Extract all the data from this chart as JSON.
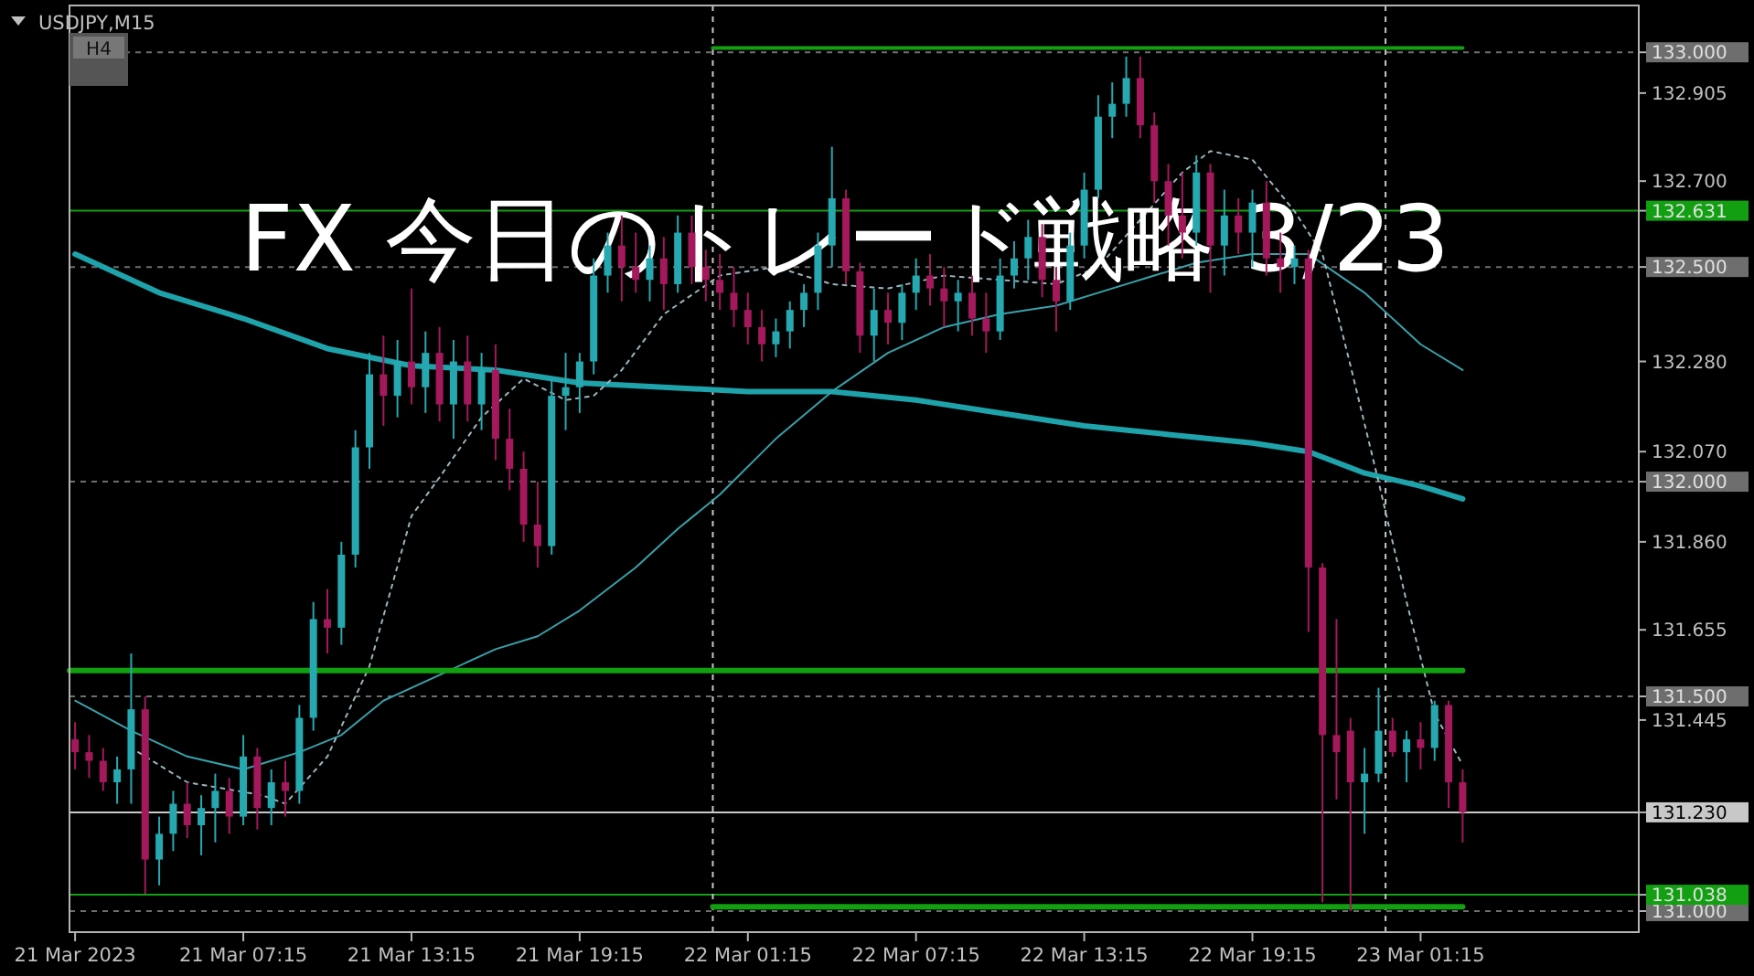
{
  "chart_data": {
    "type": "candlestick",
    "title": "FX 今日のトレード戦略 3/23",
    "annotations": [
      "USDJPY,M15",
      "H4"
    ],
    "xlim": [
      "2023-03-21T01:03",
      "2023-03-23T09:02"
    ],
    "ylim": [
      130.951,
      133.109
    ],
    "xticks": [
      {
        "value": "2023-03-21T01:15",
        "label": "21 Mar 2023"
      },
      {
        "value": "2023-03-21T07:15",
        "label": "21 Mar 07:15"
      },
      {
        "value": "2023-03-21T13:15",
        "label": "21 Mar 13:15"
      },
      {
        "value": "2023-03-21T19:15",
        "label": "21 Mar 19:15"
      },
      {
        "value": "2023-03-22T01:15",
        "label": "22 Mar 01:15"
      },
      {
        "value": "2023-03-22T07:15",
        "label": "22 Mar 07:15"
      },
      {
        "value": "2023-03-22T13:15",
        "label": "22 Mar 13:15"
      },
      {
        "value": "2023-03-22T19:15",
        "label": "22 Mar 19:15"
      },
      {
        "value": "2023-03-23T01:15",
        "label": "23 Mar 01:15"
      }
    ],
    "yticks": [
      {
        "value": 133,
        "label": "133.000"
      },
      132.905,
      {
        "value": 132.7,
        "label": "132.700"
      },
      132.631,
      {
        "value": 132.5,
        "label": "132.500"
      },
      {
        "value": 132.28,
        "label": "132.280"
      },
      {
        "value": 132.07,
        "label": "132.070"
      },
      {
        "value": 132,
        "label": "132.000"
      },
      {
        "value": 131.86,
        "label": "131.860"
      },
      131.655,
      {
        "value": 131.5,
        "label": "131.500"
      },
      131.445,
      {
        "value": 131.23,
        "label": "131.230"
      },
      131.038,
      {
        "value": 131,
        "label": "131.000"
      }
    ],
    "ref_lines": [
      {
        "axis": "y",
        "value": 133,
        "color": "#6e6e6e",
        "line_style": "dashed"
      },
      {
        "axis": "y",
        "value": 132.5,
        "color": "#6e6e6e",
        "line_style": "dashed"
      },
      {
        "axis": "y",
        "value": 132,
        "color": "#6e6e6e",
        "line_style": "dashed"
      },
      {
        "axis": "y",
        "value": 131.5,
        "color": "#6e6e6e",
        "line_style": "dashed"
      },
      {
        "axis": "y",
        "value": 131,
        "color": "#6e6e6e",
        "line_style": "dashed"
      },
      {
        "axis": "y",
        "value": 132.631,
        "color": "#12a012",
        "line_style": "solid"
      },
      {
        "axis": "y",
        "value": 131.038,
        "color": "#12a012",
        "line_style": "solid"
      },
      {
        "axis": "y",
        "value": 131.23,
        "color": "#c8c8c8",
        "line_style": "solid"
      },
      {
        "axis": "x",
        "value": "2023-03-22T00:00",
        "color": "#c8c8c8",
        "line_style": "dashed"
      },
      {
        "axis": "x",
        "value": "2023-03-23T00:00",
        "color": "#c8c8c8",
        "line_style": "dashed"
      }
    ],
    "x": [
      "2023-03-21T01:15",
      "2023-03-21T01:45",
      "2023-03-21T02:15",
      "2023-03-21T02:45",
      "2023-03-21T03:15",
      "2023-03-21T03:45",
      "2023-03-21T04:15",
      "2023-03-21T04:45",
      "2023-03-21T05:15",
      "2023-03-21T05:45",
      "2023-03-21T06:15",
      "2023-03-21T06:45",
      "2023-03-21T07:15",
      "2023-03-21T07:45",
      "2023-03-21T08:15",
      "2023-03-21T08:45",
      "2023-03-21T09:15",
      "2023-03-21T09:45",
      "2023-03-21T10:15",
      "2023-03-21T10:45",
      "2023-03-21T11:15",
      "2023-03-21T11:45",
      "2023-03-21T12:15",
      "2023-03-21T12:45",
      "2023-03-21T13:15",
      "2023-03-21T13:45",
      "2023-03-21T14:15",
      "2023-03-21T14:45",
      "2023-03-21T15:15",
      "2023-03-21T15:45",
      "2023-03-21T16:15",
      "2023-03-21T16:45",
      "2023-03-21T17:15",
      "2023-03-21T17:45",
      "2023-03-21T18:15",
      "2023-03-21T18:45",
      "2023-03-21T19:15",
      "2023-03-21T19:45",
      "2023-03-21T20:15",
      "2023-03-21T20:45",
      "2023-03-21T21:15",
      "2023-03-21T21:45",
      "2023-03-21T22:15",
      "2023-03-21T22:45",
      "2023-03-21T23:15",
      "2023-03-21T23:45",
      "2023-03-22T00:15",
      "2023-03-22T00:45",
      "2023-03-22T01:15",
      "2023-03-22T01:45",
      "2023-03-22T02:15",
      "2023-03-22T02:45",
      "2023-03-22T03:15",
      "2023-03-22T03:45",
      "2023-03-22T04:15",
      "2023-03-22T04:45",
      "2023-03-22T05:15",
      "2023-03-22T05:45",
      "2023-03-22T06:15",
      "2023-03-22T06:45",
      "2023-03-22T07:15",
      "2023-03-22T07:45",
      "2023-03-22T08:15",
      "2023-03-22T08:45",
      "2023-03-22T09:15",
      "2023-03-22T09:45",
      "2023-03-22T10:15",
      "2023-03-22T10:45",
      "2023-03-22T11:15",
      "2023-03-22T11:45",
      "2023-03-22T12:15",
      "2023-03-22T12:45",
      "2023-03-22T13:15",
      "2023-03-22T13:45",
      "2023-03-22T14:15",
      "2023-03-22T14:45",
      "2023-03-22T15:15",
      "2023-03-22T15:45",
      "2023-03-22T16:15",
      "2023-03-22T16:45",
      "2023-03-22T17:15",
      "2023-03-22T17:45",
      "2023-03-22T18:15",
      "2023-03-22T18:45",
      "2023-03-22T19:15",
      "2023-03-22T19:45",
      "2023-03-22T20:15",
      "2023-03-22T20:45",
      "2023-03-22T21:15",
      "2023-03-22T21:45",
      "2023-03-22T22:15",
      "2023-03-22T22:45",
      "2023-03-22T23:15",
      "2023-03-22T23:45",
      "2023-03-23T00:15",
      "2023-03-23T00:45",
      "2023-03-23T01:15",
      "2023-03-23T01:45",
      "2023-03-23T02:15",
      "2023-03-23T02:45"
    ],
    "ohlc": [
      [
        131.4,
        131.44,
        131.33,
        131.37
      ],
      [
        131.37,
        131.41,
        131.31,
        131.35
      ],
      [
        131.35,
        131.38,
        131.28,
        131.3
      ],
      [
        131.3,
        131.36,
        131.25,
        131.33
      ],
      [
        131.33,
        131.6,
        131.25,
        131.47
      ],
      [
        131.47,
        131.5,
        131.04,
        131.12
      ],
      [
        131.12,
        131.22,
        131.06,
        131.18
      ],
      [
        131.18,
        131.28,
        131.14,
        131.25
      ],
      [
        131.25,
        131.3,
        131.17,
        131.2
      ],
      [
        131.2,
        131.27,
        131.13,
        131.24
      ],
      [
        131.24,
        131.32,
        131.16,
        131.28
      ],
      [
        131.28,
        131.31,
        131.18,
        131.22
      ],
      [
        131.22,
        131.41,
        131.2,
        131.36
      ],
      [
        131.36,
        131.38,
        131.19,
        131.24
      ],
      [
        131.24,
        131.33,
        131.2,
        131.3
      ],
      [
        131.3,
        131.35,
        131.22,
        131.28
      ],
      [
        131.28,
        131.48,
        131.25,
        131.45
      ],
      [
        131.45,
        131.72,
        131.42,
        131.68
      ],
      [
        131.68,
        131.75,
        131.6,
        131.66
      ],
      [
        131.66,
        131.86,
        131.62,
        131.83
      ],
      [
        131.83,
        132.12,
        131.8,
        132.08
      ],
      [
        132.08,
        132.3,
        132.03,
        132.25
      ],
      [
        132.25,
        132.34,
        132.13,
        132.2
      ],
      [
        132.2,
        132.33,
        132.15,
        132.28
      ],
      [
        132.28,
        132.45,
        132.18,
        132.22
      ],
      [
        132.22,
        132.35,
        132.16,
        132.3
      ],
      [
        132.3,
        132.36,
        132.14,
        132.18
      ],
      [
        132.18,
        132.33,
        132.1,
        132.28
      ],
      [
        132.28,
        132.34,
        132.14,
        132.18
      ],
      [
        132.18,
        132.3,
        132.12,
        132.26
      ],
      [
        132.26,
        132.32,
        132.05,
        132.1
      ],
      [
        132.1,
        132.17,
        131.98,
        132.03
      ],
      [
        132.03,
        132.07,
        131.86,
        131.9
      ],
      [
        131.9,
        132.0,
        131.8,
        131.85
      ],
      [
        131.85,
        132.24,
        131.83,
        132.2
      ],
      [
        132.2,
        132.3,
        132.12,
        132.22
      ],
      [
        132.22,
        132.3,
        132.16,
        132.28
      ],
      [
        132.28,
        132.52,
        132.25,
        132.48
      ],
      [
        132.48,
        132.58,
        132.44,
        132.55
      ],
      [
        132.55,
        132.62,
        132.42,
        132.5
      ],
      [
        132.5,
        132.58,
        132.44,
        132.47
      ],
      [
        132.47,
        132.55,
        132.42,
        132.52
      ],
      [
        132.52,
        132.57,
        132.4,
        132.46
      ],
      [
        132.46,
        132.62,
        132.44,
        132.58
      ],
      [
        132.58,
        132.62,
        132.46,
        132.5
      ],
      [
        132.5,
        132.54,
        132.42,
        132.47
      ],
      [
        132.47,
        132.53,
        132.4,
        132.44
      ],
      [
        132.44,
        132.5,
        132.36,
        132.4
      ],
      [
        132.4,
        132.44,
        132.32,
        132.36
      ],
      [
        132.36,
        132.4,
        132.28,
        132.32
      ],
      [
        132.32,
        132.38,
        132.29,
        132.35
      ],
      [
        132.35,
        132.42,
        132.31,
        132.4
      ],
      [
        132.4,
        132.46,
        132.36,
        132.44
      ],
      [
        132.44,
        132.58,
        132.4,
        132.55
      ],
      [
        132.55,
        132.78,
        132.5,
        132.66
      ],
      [
        132.66,
        132.68,
        132.46,
        132.49
      ],
      [
        132.49,
        132.51,
        132.3,
        132.34
      ],
      [
        132.34,
        132.45,
        132.28,
        132.4
      ],
      [
        132.4,
        132.44,
        132.32,
        132.37
      ],
      [
        132.37,
        132.46,
        132.33,
        132.44
      ],
      [
        132.44,
        132.52,
        132.4,
        132.48
      ],
      [
        132.48,
        132.53,
        132.41,
        132.45
      ],
      [
        132.45,
        132.5,
        132.36,
        132.42
      ],
      [
        132.42,
        132.47,
        132.35,
        132.44
      ],
      [
        132.44,
        132.48,
        132.34,
        132.38
      ],
      [
        132.38,
        132.44,
        132.3,
        132.35
      ],
      [
        132.35,
        132.52,
        132.33,
        132.48
      ],
      [
        132.48,
        132.56,
        132.45,
        132.52
      ],
      [
        132.52,
        132.61,
        132.47,
        132.57
      ],
      [
        132.57,
        132.6,
        132.43,
        132.47
      ],
      [
        132.47,
        132.5,
        132.35,
        132.42
      ],
      [
        132.42,
        132.58,
        132.4,
        132.55
      ],
      [
        132.55,
        132.72,
        132.52,
        132.68
      ],
      [
        132.68,
        132.9,
        132.66,
        132.85
      ],
      [
        132.85,
        132.93,
        132.8,
        132.88
      ],
      [
        132.88,
        132.99,
        132.85,
        132.94
      ],
      [
        132.94,
        132.99,
        132.8,
        132.83
      ],
      [
        132.83,
        132.86,
        132.65,
        132.7
      ],
      [
        132.7,
        132.74,
        132.55,
        132.62
      ],
      [
        132.62,
        132.72,
        132.52,
        132.58
      ],
      [
        132.58,
        132.76,
        132.55,
        132.72
      ],
      [
        132.72,
        132.74,
        132.44,
        132.55
      ],
      [
        132.55,
        132.68,
        132.48,
        132.62
      ],
      [
        132.62,
        132.66,
        132.53,
        132.58
      ],
      [
        132.58,
        132.68,
        132.5,
        132.65
      ],
      [
        132.65,
        132.7,
        132.48,
        132.52
      ],
      [
        132.52,
        132.58,
        132.44,
        132.5
      ],
      [
        132.5,
        132.55,
        132.46,
        132.52
      ],
      [
        132.52,
        132.54,
        131.65,
        131.8
      ],
      [
        131.8,
        131.81,
        131.02,
        131.41
      ],
      [
        131.41,
        131.68,
        131.26,
        131.37
      ],
      [
        131.42,
        131.45,
        131.0,
        131.3
      ],
      [
        131.3,
        131.38,
        131.18,
        131.32
      ],
      [
        131.32,
        131.52,
        131.3,
        131.42
      ],
      [
        131.42,
        131.45,
        131.36,
        131.37
      ],
      [
        131.37,
        131.42,
        131.3,
        131.4
      ],
      [
        131.4,
        131.44,
        131.33,
        131.38
      ],
      [
        131.38,
        131.49,
        131.35,
        131.48
      ],
      [
        131.48,
        131.49,
        131.24,
        131.3
      ],
      [
        131.3,
        131.33,
        131.16,
        131.23
      ]
    ],
    "colors": [
      "#a3195b",
      "#a3195b",
      "#a3195b",
      "#26a8b0",
      "#26a8b0",
      "#a3195b",
      "#26a8b0",
      "#26a8b0",
      "#a3195b",
      "#26a8b0",
      "#26a8b0",
      "#a3195b",
      "#26a8b0",
      "#a3195b",
      "#26a8b0",
      "#a3195b",
      "#26a8b0",
      "#26a8b0",
      "#a3195b",
      "#26a8b0",
      "#26a8b0",
      "#26a8b0",
      "#a3195b",
      "#26a8b0",
      "#a3195b",
      "#26a8b0",
      "#a3195b",
      "#26a8b0",
      "#a3195b",
      "#26a8b0",
      "#a3195b",
      "#a3195b",
      "#a3195b",
      "#a3195b",
      "#26a8b0",
      "#26a8b0",
      "#26a8b0",
      "#26a8b0",
      "#26a8b0",
      "#a3195b",
      "#a3195b",
      "#26a8b0",
      "#a3195b",
      "#26a8b0",
      "#a3195b",
      "#a3195b",
      "#a3195b",
      "#a3195b",
      "#a3195b",
      "#a3195b",
      "#26a8b0",
      "#26a8b0",
      "#26a8b0",
      "#26a8b0",
      "#26a8b0",
      "#a3195b",
      "#a3195b",
      "#26a8b0",
      "#a3195b",
      "#26a8b0",
      "#26a8b0",
      "#a3195b",
      "#a3195b",
      "#26a8b0",
      "#a3195b",
      "#a3195b",
      "#26a8b0",
      "#26a8b0",
      "#26a8b0",
      "#a3195b",
      "#a3195b",
      "#26a8b0",
      "#26a8b0",
      "#26a8b0",
      "#26a8b0",
      "#26a8b0",
      "#a3195b",
      "#a3195b",
      "#a3195b",
      "#a3195b",
      "#26a8b0",
      "#a3195b",
      "#26a8b0",
      "#a3195b",
      "#26a8b0",
      "#a3195b",
      "#a3195b",
      "#26a8b0",
      "#a3195b",
      "#a3195b",
      "#a3195b",
      "#a3195b",
      "#26a8b0",
      "#26a8b0",
      "#a3195b",
      "#26a8b0",
      "#a3195b",
      "#26a8b0",
      "#a3195b",
      "#a3195b"
    ],
    "series": [
      {
        "type": "line",
        "color": "#1ea3ab",
        "x": [
          "2023-03-21T01:15",
          "2023-03-21T04:15",
          "2023-03-21T07:15",
          "2023-03-21T10:15",
          "2023-03-21T13:15",
          "2023-03-21T16:15",
          "2023-03-21T19:15",
          "2023-03-21T22:15",
          "2023-03-22T01:15",
          "2023-03-22T04:15",
          "2023-03-22T07:15",
          "2023-03-22T10:15",
          "2023-03-22T13:15",
          "2023-03-22T16:15",
          "2023-03-22T19:15",
          "2023-03-22T21:15",
          "2023-03-22T23:15",
          "2023-03-23T01:15",
          "2023-03-23T02:45"
        ],
        "values": [
          132.53,
          132.44,
          132.38,
          132.31,
          132.27,
          132.26,
          132.23,
          132.22,
          132.21,
          132.21,
          132.19,
          132.16,
          132.13,
          132.11,
          132.09,
          132.07,
          132.02,
          131.99,
          131.96
        ]
      },
      {
        "type": "line",
        "color": "#3aa0a8",
        "x": [
          "2023-03-21T01:15",
          "2023-03-21T03:15",
          "2023-03-21T05:15",
          "2023-03-21T07:15",
          "2023-03-21T08:15",
          "2023-03-21T09:15",
          "2023-03-21T10:45",
          "2023-03-21T12:15",
          "2023-03-21T14:15",
          "2023-03-21T16:15",
          "2023-03-21T17:45",
          "2023-03-21T19:15",
          "2023-03-21T21:15",
          "2023-03-21T22:45",
          "2023-03-22T00:15",
          "2023-03-22T02:15",
          "2023-03-22T04:15",
          "2023-03-22T06:15",
          "2023-03-22T08:15",
          "2023-03-22T10:15",
          "2023-03-22T12:15",
          "2023-03-22T14:15",
          "2023-03-22T15:45",
          "2023-03-22T17:15",
          "2023-03-22T19:15",
          "2023-03-22T21:15",
          "2023-03-22T23:15",
          "2023-03-23T01:15",
          "2023-03-23T02:45"
        ],
        "values": [
          131.49,
          131.42,
          131.36,
          131.33,
          131.35,
          131.37,
          131.41,
          131.49,
          131.55,
          131.61,
          131.64,
          131.7,
          131.8,
          131.89,
          131.97,
          132.1,
          132.21,
          132.3,
          132.36,
          132.39,
          132.41,
          132.45,
          132.48,
          132.51,
          132.53,
          132.53,
          132.44,
          132.32,
          132.26
        ]
      },
      {
        "type": "line",
        "color": "#9bb4bc",
        "line_style": "dotted",
        "x": [
          "2023-03-21T03:30",
          "2023-03-21T05:15",
          "2023-03-21T07:55",
          "2023-03-21T08:45",
          "2023-03-21T10:15",
          "2023-03-21T11:45",
          "2023-03-21T13:15",
          "2023-03-21T14:15",
          "2023-03-21T15:45",
          "2023-03-21T17:15",
          "2023-03-21T18:45",
          "2023-03-21T19:45",
          "2023-03-21T20:45",
          "2023-03-21T22:15",
          "2023-03-22T00:15",
          "2023-03-22T02:15",
          "2023-03-22T04:15",
          "2023-03-22T06:15",
          "2023-03-22T08:15",
          "2023-03-22T10:15",
          "2023-03-22T12:15",
          "2023-03-22T13:45",
          "2023-03-22T15:15",
          "2023-03-22T16:45",
          "2023-03-22T17:45",
          "2023-03-22T19:15",
          "2023-03-22T20:45",
          "2023-03-22T21:45",
          "2023-03-22T22:45",
          "2023-03-22T23:45",
          "2023-03-23T00:45",
          "2023-03-23T01:45",
          "2023-03-23T02:45"
        ],
        "values": [
          131.37,
          131.3,
          131.27,
          131.25,
          131.36,
          131.57,
          131.92,
          132.01,
          132.15,
          132.24,
          132.19,
          132.2,
          132.26,
          132.39,
          132.48,
          132.5,
          132.46,
          132.45,
          132.48,
          132.47,
          132.46,
          132.5,
          132.61,
          132.72,
          132.77,
          132.75,
          132.63,
          132.53,
          132.27,
          132.0,
          131.72,
          131.46,
          131.34
        ]
      },
      {
        "type": "line",
        "color": "#12a012",
        "x": [
          "2023-03-22T00:00",
          "2023-03-23T02:45"
        ],
        "values": [
          133.01,
          133.01
        ]
      },
      {
        "type": "line",
        "color": "#12a012",
        "x": [
          "2023-03-21T01:03",
          "2023-03-23T02:45"
        ],
        "values": [
          131.56,
          131.56
        ]
      },
      {
        "type": "line",
        "color": "#12a012",
        "x": [
          "2023-03-22T00:00",
          "2023-03-23T02:45"
        ],
        "values": [
          131.01,
          131.01
        ]
      }
    ]
  }
}
